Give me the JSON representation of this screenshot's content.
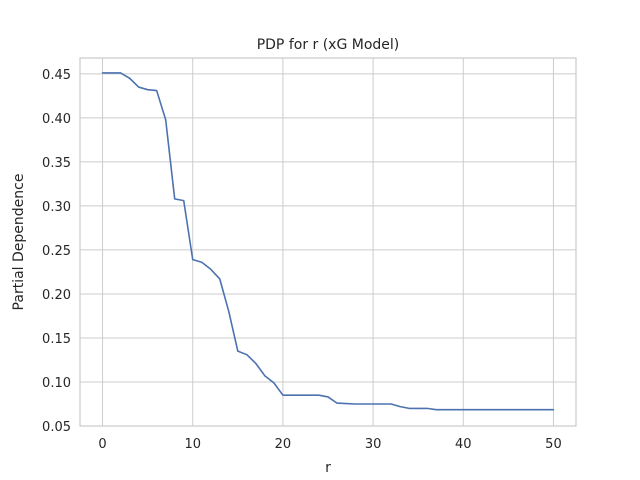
{
  "chart_data": {
    "type": "line",
    "title": "PDP for r (xG Model)",
    "xlabel": "r",
    "ylabel": "Partial Dependence",
    "xlim": [
      -2.5,
      52.5
    ],
    "ylim": [
      0.05,
      0.468
    ],
    "xticks": [
      0,
      10,
      20,
      30,
      40,
      50
    ],
    "yticks": [
      0.05,
      0.1,
      0.15,
      0.2,
      0.25,
      0.3,
      0.35,
      0.4,
      0.45
    ],
    "ytick_labels": [
      "0.05",
      "0.10",
      "0.15",
      "0.20",
      "0.25",
      "0.30",
      "0.35",
      "0.40",
      "0.45"
    ],
    "grid": true,
    "colors": {
      "line": "#4c72b0",
      "grid": "#cccccc",
      "spine": "#cccccc"
    },
    "series": [
      {
        "x": [
          0,
          1,
          2,
          3,
          4,
          5,
          6,
          7,
          8,
          9,
          10,
          11,
          12,
          13,
          14,
          15,
          16,
          17,
          18,
          19,
          20,
          21,
          22,
          23,
          24,
          25,
          26,
          27,
          28,
          29,
          30,
          31,
          32,
          33,
          34,
          35,
          36,
          37,
          38,
          40,
          42,
          44,
          46,
          48,
          50
        ],
        "y": [
          0.451,
          0.451,
          0.451,
          0.445,
          0.435,
          0.432,
          0.431,
          0.398,
          0.308,
          0.306,
          0.239,
          0.236,
          0.228,
          0.217,
          0.18,
          0.135,
          0.131,
          0.121,
          0.107,
          0.099,
          0.085,
          0.085,
          0.085,
          0.085,
          0.085,
          0.083,
          0.076,
          0.0755,
          0.075,
          0.075,
          0.075,
          0.075,
          0.075,
          0.072,
          0.07,
          0.07,
          0.07,
          0.0685,
          0.0685,
          0.0685,
          0.0685,
          0.0685,
          0.0685,
          0.0685,
          0.0685
        ]
      }
    ]
  }
}
